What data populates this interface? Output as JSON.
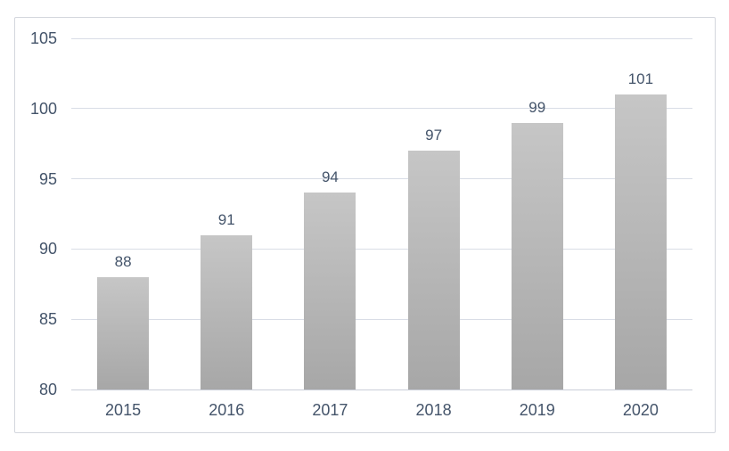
{
  "chart_data": {
    "type": "bar",
    "title": "",
    "xlabel": "",
    "ylabel": "",
    "categories": [
      "2015",
      "2016",
      "2017",
      "2018",
      "2019",
      "2020"
    ],
    "values": [
      88,
      91,
      94,
      97,
      99,
      101
    ],
    "data_labels": [
      "88",
      "91",
      "94",
      "97",
      "99",
      "101"
    ],
    "ylim": [
      80,
      105
    ],
    "yticks": [
      80,
      85,
      90,
      95,
      100,
      105
    ],
    "ytick_labels": [
      "80",
      "85",
      "90",
      "95",
      "100",
      "105"
    ],
    "grid": true,
    "legend": false,
    "colors": {
      "bar_gradient_top": "#c6c6c6",
      "bar_gradient_bottom": "#a7a7a7",
      "text": "#44546A",
      "gridline": "#d9dde6",
      "axis_line": "#c9ced8",
      "frame_border": "#d3d6dd",
      "background": "#ffffff"
    }
  }
}
